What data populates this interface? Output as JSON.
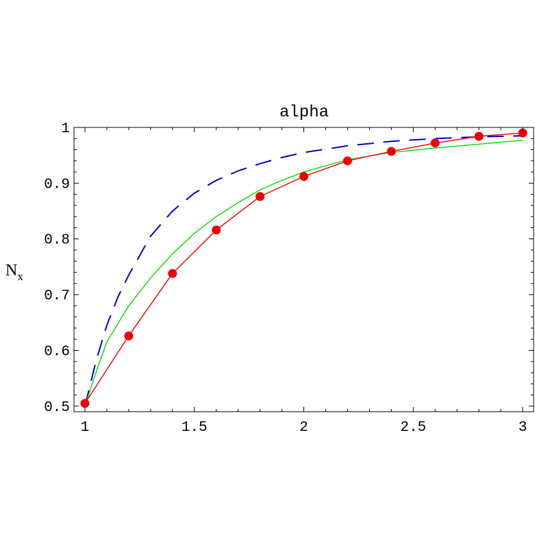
{
  "chart_data": {
    "type": "line",
    "title": "alpha",
    "xlabel": "",
    "ylabel": "N",
    "ylabel_subscript": "x",
    "xlim": [
      0.95,
      3.05
    ],
    "ylim": [
      0.49,
      1.0
    ],
    "x_ticks": [
      1,
      1.5,
      2,
      2.5,
      3
    ],
    "x_tick_labels": [
      "1",
      "1.5",
      "2",
      "2.5",
      "3"
    ],
    "y_ticks": [
      0.5,
      0.6,
      0.7,
      0.8,
      0.9,
      1
    ],
    "y_tick_labels": [
      "0.5",
      "0.6",
      "0.7",
      "0.8",
      "0.9",
      "1"
    ],
    "grid": false,
    "series": [
      {
        "style": "dashed",
        "color": "#0000cc",
        "x": [
          1.0,
          1.05,
          1.1,
          1.15,
          1.2,
          1.25,
          1.3,
          1.4,
          1.5,
          1.6,
          1.7,
          1.8,
          1.9,
          2.0,
          2.2,
          2.4,
          2.6,
          2.8,
          3.0
        ],
        "y": [
          0.5,
          0.58,
          0.645,
          0.695,
          0.735,
          0.77,
          0.805,
          0.85,
          0.882,
          0.905,
          0.922,
          0.935,
          0.946,
          0.955,
          0.967,
          0.975,
          0.98,
          0.983,
          0.985
        ]
      },
      {
        "style": "solid",
        "color": "#00dd00",
        "x": [
          1.0,
          1.05,
          1.1,
          1.2,
          1.3,
          1.4,
          1.5,
          1.6,
          1.7,
          1.8,
          1.9,
          2.0,
          2.2,
          2.4,
          2.6,
          2.8,
          3.0
        ],
        "y": [
          0.5,
          0.56,
          0.615,
          0.68,
          0.73,
          0.773,
          0.81,
          0.84,
          0.865,
          0.888,
          0.905,
          0.92,
          0.942,
          0.955,
          0.963,
          0.97,
          0.977
        ]
      },
      {
        "style": "solid-markers",
        "color": "#ee0000",
        "x": [
          1.0,
          1.2,
          1.4,
          1.6,
          1.8,
          2.0,
          2.2,
          2.4,
          2.6,
          2.8,
          3.0
        ],
        "y": [
          0.505,
          0.626,
          0.738,
          0.816,
          0.876,
          0.912,
          0.94,
          0.957,
          0.972,
          0.984,
          0.99
        ]
      }
    ]
  }
}
